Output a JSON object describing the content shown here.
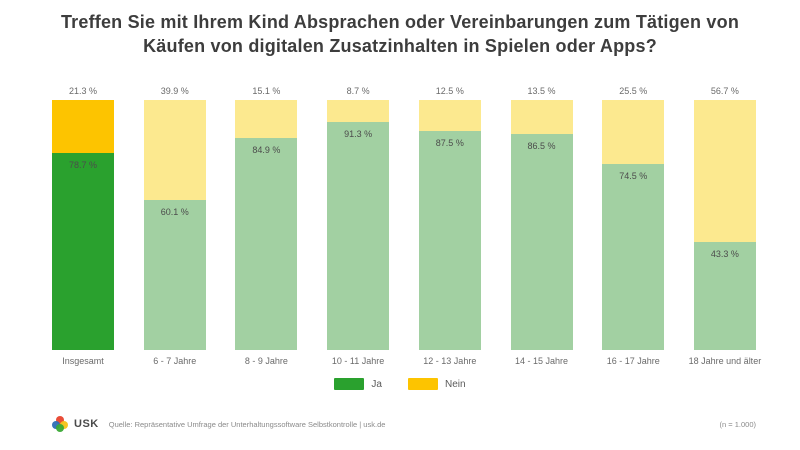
{
  "title": "Treffen Sie mit Ihrem Kind Absprachen oder Vereinbarungen zum Tätigen von Käufen von digitalen Zusatzinhalten in Spielen oder Apps?",
  "chart_data": {
    "type": "bar",
    "stacked": true,
    "orientation": "vertical",
    "ylim": [
      0,
      100
    ],
    "grid": false,
    "legend_position": "bottom-center",
    "categories": [
      "Insgesamt",
      "6 - 7 Jahre",
      "8 - 9 Jahre",
      "10 - 11 Jahre",
      "12 - 13 Jahre",
      "14 - 15 Jahre",
      "16 - 17 Jahre",
      "18 Jahre und älter"
    ],
    "series": [
      {
        "name": "Ja",
        "values": [
          78.7,
          60.1,
          84.9,
          91.3,
          87.5,
          86.5,
          74.5,
          43.3
        ]
      },
      {
        "name": "Nein",
        "values": [
          21.3,
          39.9,
          15.1,
          8.7,
          12.5,
          13.5,
          25.5,
          56.7
        ]
      }
    ],
    "top_labels": [
      "21.3 %",
      "39.9 %",
      "15.1 %",
      "8.7 %",
      "12.5 %",
      "13.5 %",
      "25.5 %",
      "56.7 %"
    ],
    "inner_labels": [
      "78.7 %",
      "60.1 %",
      "84.9 %",
      "91.3 %",
      "87.5 %",
      "86.5 %",
      "74.5 %",
      "43.3 %"
    ],
    "emphasized_index": 0,
    "colors": {
      "ja_strong": "#2aa12e",
      "nein_strong": "#fdc400",
      "ja_muted": "#a2d0a2",
      "nein_muted": "#fce98f"
    }
  },
  "legend": {
    "items": [
      {
        "label": "Ja",
        "color": "#2aa12e"
      },
      {
        "label": "Nein",
        "color": "#fdc400"
      }
    ]
  },
  "footer": {
    "brand": "USK",
    "source": "Quelle: Repräsentative Umfrage der Unterhaltungssoftware Selbstkontrolle | usk.de",
    "sample": "(n = 1.000)",
    "logo_colors": {
      "top": "#e8432d",
      "left": "#2d6eb5",
      "right": "#f5c21a",
      "bottom": "#3aa935"
    }
  }
}
